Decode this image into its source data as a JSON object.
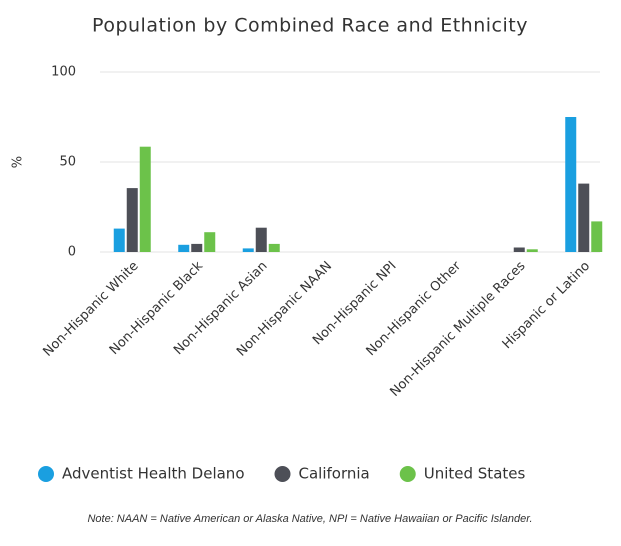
{
  "chart_data": {
    "type": "bar",
    "title": "Population by Combined Race and Ethnicity",
    "y_label": "%",
    "categories": [
      "Non-Hispanic White",
      "Non-Hispanic Black",
      "Non-Hispanic Asian",
      "Non-Hispanic NAAN",
      "Non-Hispanic NPI",
      "Non-Hispanic Other",
      "Non-Hispanic Multiple Races",
      "Hispanic or Latino"
    ],
    "series": [
      {
        "name": "Adventist Health Delano",
        "color": "#1a9fe0",
        "values": [
          13,
          4,
          2,
          0,
          0,
          0,
          0,
          75
        ]
      },
      {
        "name": "California",
        "color": "#4d4f57",
        "values": [
          35.5,
          4.5,
          13.5,
          0,
          0,
          0,
          2.5,
          38
        ]
      },
      {
        "name": "United States",
        "color": "#6cc24a",
        "values": [
          58.5,
          11,
          4.5,
          0,
          0,
          0,
          1.5,
          17
        ]
      }
    ],
    "ylim": [
      0,
      100
    ],
    "yticks": [
      0,
      50,
      100
    ],
    "grid": true,
    "note": "Note: NAAN = Native American or Alaska Native, NPI = Native Hawaiian or Pacific Islander."
  }
}
